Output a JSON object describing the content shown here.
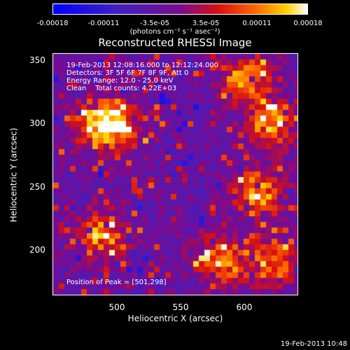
{
  "colorbar": {
    "ticks": [
      "-0.00018",
      "-0.00011",
      "-3.5e-05",
      "3.5e-05",
      "0.00011",
      "0.00018"
    ],
    "units": "(photons cm⁻² s⁻¹ asec⁻²)"
  },
  "chart_data": {
    "type": "heatmap",
    "title": "Reconstructed RHESSI Image",
    "xlabel": "Heliocentric X (arcsec)",
    "ylabel": "Heliocentric Y (arcsec)",
    "xlim": [
      450,
      640
    ],
    "ylim": [
      163,
      355
    ],
    "xticks": [
      500,
      550,
      600
    ],
    "yticks": [
      200,
      250,
      300,
      350
    ],
    "zlim": [
      -0.00018,
      0.00018
    ],
    "colormap": "blue-purple-red-orange-yellow-white",
    "bright_regions": [
      {
        "x": 500,
        "y": 298
      },
      {
        "x": 485,
        "y": 300
      },
      {
        "x": 488,
        "y": 212
      },
      {
        "x": 620,
        "y": 300
      },
      {
        "x": 610,
        "y": 245
      },
      {
        "x": 620,
        "y": 190
      },
      {
        "x": 580,
        "y": 190
      },
      {
        "x": 600,
        "y": 335
      }
    ]
  },
  "annotation": {
    "line1": "19-Feb-2013 12:08:16.000 to 12:12:24.000",
    "line2": "Detectors: 3F 5F 6F 7F 8F 9F, Att 0",
    "line3": "Energy Range: 12.0 - 25.0 keV",
    "line4": "Clean    Total counts: 4.22E+03",
    "peak": "Position of Peak = [501,298]"
  },
  "timestamp": "19-Feb-2013 10:48"
}
